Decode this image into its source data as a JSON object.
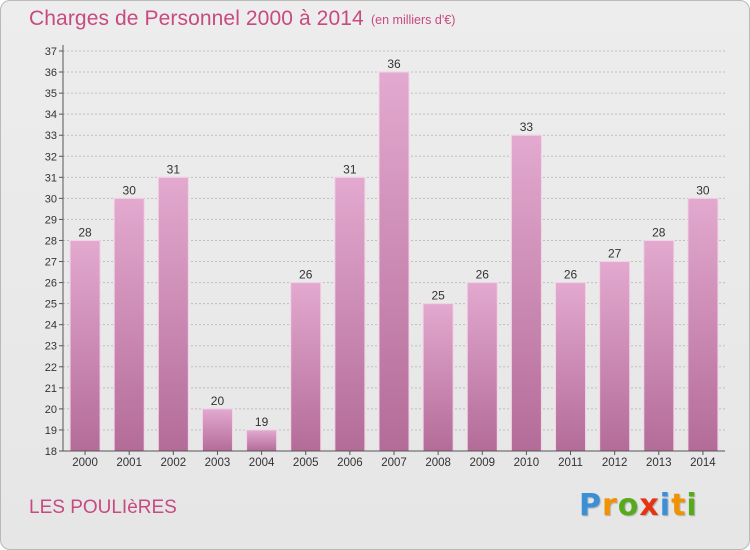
{
  "header": {
    "title": "Charges de Personnel 2000 à 2014",
    "subtitle": "(en milliers d'€)"
  },
  "footer": {
    "commune": "LES POULIèRES",
    "brand": {
      "letters": [
        "P",
        "r",
        "o",
        "x",
        "i",
        "t",
        "i"
      ],
      "colors": [
        "#3a8fd6",
        "#f39200",
        "#56aa1c",
        "#e63312",
        "#3a8fd6",
        "#f39200",
        "#56aa1c"
      ]
    }
  },
  "colors": {
    "bar_top": "#e3a9cf",
    "bar_bottom": "#b36c98",
    "accent": "#c74a80",
    "grid": "#bfbfbf"
  },
  "chart_data": {
    "type": "bar",
    "title": "Charges de Personnel 2000 à 2014",
    "subtitle": "(en milliers d'€)",
    "categories": [
      "2000",
      "2001",
      "2002",
      "2003",
      "2004",
      "2005",
      "2006",
      "2007",
      "2008",
      "2009",
      "2010",
      "2011",
      "2012",
      "2013",
      "2014"
    ],
    "values": [
      28,
      30,
      31,
      20,
      19,
      26,
      31,
      36,
      25,
      26,
      33,
      26,
      27,
      28,
      30
    ],
    "ylim": [
      18,
      37
    ],
    "yticks": [
      18,
      19,
      20,
      21,
      22,
      23,
      24,
      25,
      26,
      27,
      28,
      29,
      30,
      31,
      32,
      33,
      34,
      35,
      36,
      37
    ],
    "grid": true,
    "data_labels": true
  }
}
